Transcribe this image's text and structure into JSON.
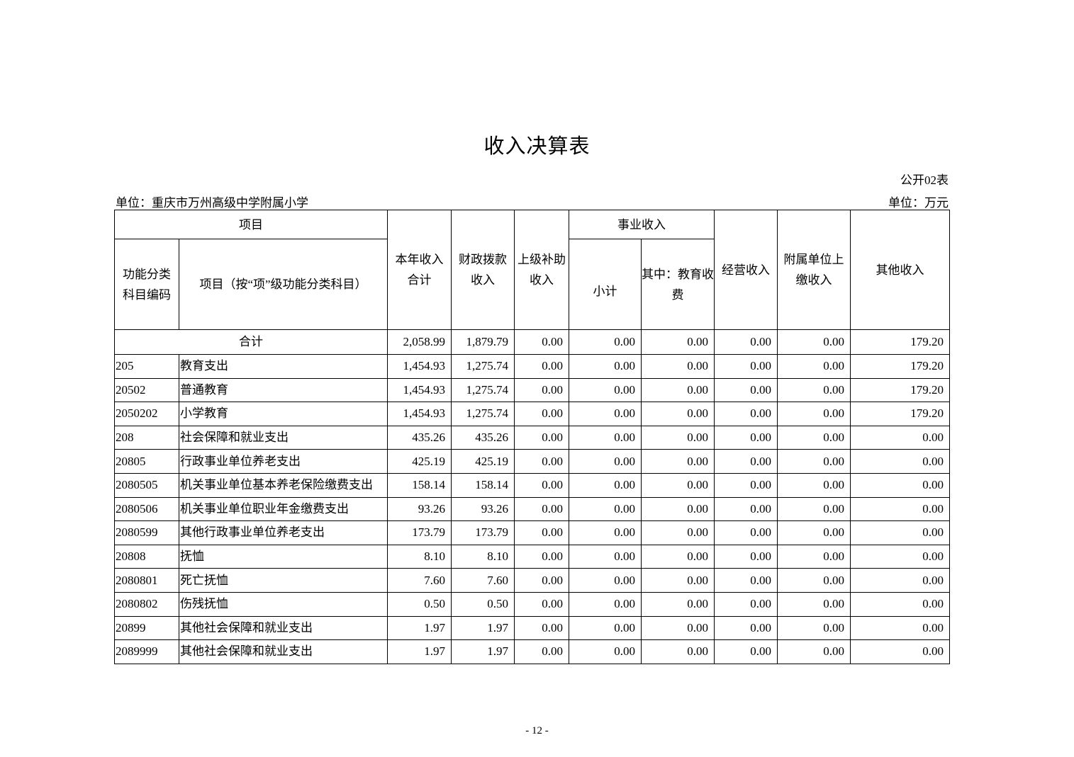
{
  "title": "收入决算表",
  "form_no": "公开02表",
  "unit_org": "单位：重庆市万州高级中学附属小学",
  "unit_currency": "单位：万元",
  "headers": {
    "project": "项目",
    "code": "功能分类科目编码",
    "name": "项目（按“项”级功能分类科目）",
    "total": "本年收入合计",
    "fiscal": "财政拨款收入",
    "superior": "上级补助收入",
    "business": "事业收入",
    "subtotal": "小计",
    "edu_fee": "其中：教育收费",
    "operating": "经营收入",
    "affiliated": "附属单位上缴收入",
    "other": "其他收入"
  },
  "total_row": {
    "label": "合计",
    "values": [
      "2,058.99",
      "1,879.79",
      "0.00",
      "0.00",
      "0.00",
      "0.00",
      "0.00",
      "179.20"
    ]
  },
  "rows": [
    {
      "code": "205",
      "name": "教育支出",
      "values": [
        "1,454.93",
        "1,275.74",
        "0.00",
        "0.00",
        "0.00",
        "0.00",
        "0.00",
        "179.20"
      ]
    },
    {
      "code": "20502",
      "name": "普通教育",
      "values": [
        "1,454.93",
        "1,275.74",
        "0.00",
        "0.00",
        "0.00",
        "0.00",
        "0.00",
        "179.20"
      ]
    },
    {
      "code": "2050202",
      "name": "小学教育",
      "values": [
        "1,454.93",
        "1,275.74",
        "0.00",
        "0.00",
        "0.00",
        "0.00",
        "0.00",
        "179.20"
      ]
    },
    {
      "code": "208",
      "name": "社会保障和就业支出",
      "values": [
        "435.26",
        "435.26",
        "0.00",
        "0.00",
        "0.00",
        "0.00",
        "0.00",
        "0.00"
      ]
    },
    {
      "code": "20805",
      "name": "行政事业单位养老支出",
      "values": [
        "425.19",
        "425.19",
        "0.00",
        "0.00",
        "0.00",
        "0.00",
        "0.00",
        "0.00"
      ]
    },
    {
      "code": "2080505",
      "name": "机关事业单位基本养老保险缴费支出",
      "values": [
        "158.14",
        "158.14",
        "0.00",
        "0.00",
        "0.00",
        "0.00",
        "0.00",
        "0.00"
      ]
    },
    {
      "code": "2080506",
      "name": "机关事业单位职业年金缴费支出",
      "values": [
        "93.26",
        "93.26",
        "0.00",
        "0.00",
        "0.00",
        "0.00",
        "0.00",
        "0.00"
      ]
    },
    {
      "code": "2080599",
      "name": "其他行政事业单位养老支出",
      "values": [
        "173.79",
        "173.79",
        "0.00",
        "0.00",
        "0.00",
        "0.00",
        "0.00",
        "0.00"
      ]
    },
    {
      "code": "20808",
      "name": "抚恤",
      "values": [
        "8.10",
        "8.10",
        "0.00",
        "0.00",
        "0.00",
        "0.00",
        "0.00",
        "0.00"
      ]
    },
    {
      "code": "2080801",
      "name": "死亡抚恤",
      "values": [
        "7.60",
        "7.60",
        "0.00",
        "0.00",
        "0.00",
        "0.00",
        "0.00",
        "0.00"
      ]
    },
    {
      "code": "2080802",
      "name": "伤残抚恤",
      "values": [
        "0.50",
        "0.50",
        "0.00",
        "0.00",
        "0.00",
        "0.00",
        "0.00",
        "0.00"
      ]
    },
    {
      "code": "20899",
      "name": "其他社会保障和就业支出",
      "values": [
        "1.97",
        "1.97",
        "0.00",
        "0.00",
        "0.00",
        "0.00",
        "0.00",
        "0.00"
      ]
    },
    {
      "code": "2089999",
      "name": "其他社会保障和就业支出",
      "values": [
        "1.97",
        "1.97",
        "0.00",
        "0.00",
        "0.00",
        "0.00",
        "0.00",
        "0.00"
      ]
    }
  ],
  "page_number": "- 12 -"
}
